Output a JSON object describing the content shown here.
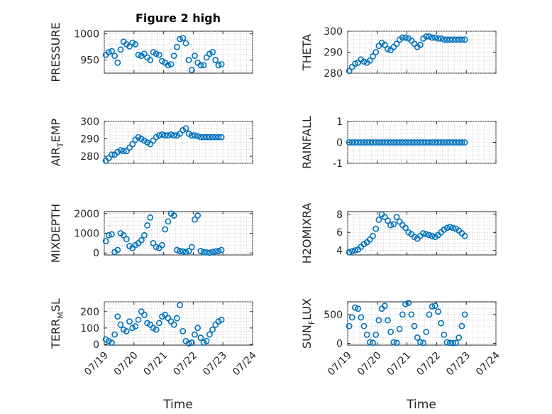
{
  "figure_title": "Figure 2 high",
  "x_tick_labels": [
    "07/19",
    "07/20",
    "07/21",
    "07/22",
    "07/23",
    "07/24"
  ],
  "x_label": "Time",
  "marker_color": "#0072bd",
  "chart_data": [
    {
      "type": "scatter",
      "ylabel": "PRESSURE",
      "ylim": [
        925,
        1005
      ],
      "yticks": [
        950,
        1000
      ],
      "grid": true,
      "xlim": [
        0,
        5
      ],
      "x": [
        0.05,
        0.15,
        0.25,
        0.35,
        0.45,
        0.55,
        0.65,
        0.75,
        0.85,
        0.95,
        1.05,
        1.15,
        1.25,
        1.35,
        1.45,
        1.55,
        1.65,
        1.75,
        1.85,
        1.95,
        2.05,
        2.15,
        2.25,
        2.35,
        2.45,
        2.55,
        2.65,
        2.75,
        2.85,
        2.95,
        3.05,
        3.15,
        3.25,
        3.35,
        3.45,
        3.55,
        3.65,
        3.75,
        3.85,
        3.95
      ],
      "values": [
        960,
        965,
        967,
        958,
        945,
        970,
        985,
        980,
        976,
        983,
        980,
        960,
        958,
        962,
        955,
        950,
        965,
        962,
        960,
        948,
        945,
        940,
        942,
        958,
        975,
        990,
        992,
        982,
        950,
        931,
        958,
        945,
        940,
        940,
        955,
        962,
        965,
        950,
        940,
        942
      ]
    },
    {
      "type": "scatter",
      "ylabel": "THETA",
      "ylim": [
        280,
        300
      ],
      "yticks": [
        280,
        290,
        300
      ],
      "grid": true,
      "xlim": [
        0,
        5
      ],
      "x": [
        0.05,
        0.15,
        0.25,
        0.35,
        0.45,
        0.55,
        0.65,
        0.75,
        0.85,
        0.95,
        1.05,
        1.15,
        1.25,
        1.35,
        1.45,
        1.55,
        1.65,
        1.75,
        1.85,
        1.95,
        2.05,
        2.15,
        2.25,
        2.35,
        2.45,
        2.55,
        2.65,
        2.75,
        2.85,
        2.95,
        3.05,
        3.15,
        3.25,
        3.35,
        3.45,
        3.55,
        3.65,
        3.75,
        3.85,
        3.95
      ],
      "values": [
        281,
        283,
        284.5,
        285,
        286.5,
        285.5,
        285,
        286,
        288,
        290,
        293,
        294.5,
        293.5,
        291.5,
        291,
        292.5,
        294,
        296,
        297,
        297,
        296.5,
        295.5,
        294,
        292.5,
        293.5,
        296.5,
        297.5,
        297.5,
        297,
        297,
        296.5,
        296.5,
        296,
        296,
        296,
        296,
        296,
        296,
        296,
        296
      ]
    },
    {
      "type": "scatter",
      "ylabel": "AIR_TEMP",
      "ylabel_main": "AIR",
      "ylabel_sub": "T",
      "ylabel_rest": "EMP",
      "ylim": [
        276,
        300
      ],
      "yticks": [
        280,
        290,
        300
      ],
      "grid": true,
      "xlim": [
        0,
        5
      ],
      "x": [
        0.05,
        0.15,
        0.25,
        0.35,
        0.45,
        0.55,
        0.65,
        0.75,
        0.85,
        0.95,
        1.05,
        1.15,
        1.25,
        1.35,
        1.45,
        1.55,
        1.65,
        1.75,
        1.85,
        1.95,
        2.05,
        2.15,
        2.25,
        2.35,
        2.45,
        2.55,
        2.65,
        2.75,
        2.85,
        2.95,
        3.05,
        3.15,
        3.25,
        3.35,
        3.45,
        3.55,
        3.65,
        3.75,
        3.85,
        3.95
      ],
      "values": [
        277.5,
        279,
        281,
        281,
        282.5,
        283.5,
        283,
        283,
        285,
        287,
        289.5,
        291,
        290,
        289,
        288,
        287,
        289,
        291,
        292,
        292.5,
        292,
        292,
        292.5,
        292,
        292,
        293,
        295,
        296,
        293,
        292,
        292,
        291.5,
        291,
        291,
        291,
        291,
        291,
        291,
        291,
        291
      ]
    },
    {
      "type": "scatter",
      "ylabel": "RAINFALL",
      "ylim": [
        -1,
        1
      ],
      "yticks": [
        -1,
        0,
        1
      ],
      "grid": true,
      "xlim": [
        0,
        5
      ],
      "x": [
        0.05,
        0.15,
        0.25,
        0.35,
        0.45,
        0.55,
        0.65,
        0.75,
        0.85,
        0.95,
        1.05,
        1.15,
        1.25,
        1.35,
        1.45,
        1.55,
        1.65,
        1.75,
        1.85,
        1.95,
        2.05,
        2.15,
        2.25,
        2.35,
        2.45,
        2.55,
        2.65,
        2.75,
        2.85,
        2.95,
        3.05,
        3.15,
        3.25,
        3.35,
        3.45,
        3.55,
        3.65,
        3.75,
        3.85,
        3.95
      ],
      "values": [
        0,
        0,
        0,
        0,
        0,
        0,
        0,
        0,
        0,
        0,
        0,
        0,
        0,
        0,
        0,
        0,
        0,
        0,
        0,
        0,
        0,
        0,
        0,
        0,
        0,
        0,
        0,
        0,
        0,
        0,
        0,
        0,
        0,
        0,
        0,
        0,
        0,
        0,
        0,
        0
      ]
    },
    {
      "type": "scatter",
      "ylabel": "MIXDEPTH",
      "ylim": [
        -100,
        2100
      ],
      "yticks": [
        0,
        1000,
        2000
      ],
      "grid": true,
      "xlim": [
        0,
        5
      ],
      "x": [
        0.05,
        0.15,
        0.25,
        0.35,
        0.45,
        0.55,
        0.65,
        0.75,
        0.85,
        0.95,
        1.05,
        1.15,
        1.25,
        1.35,
        1.45,
        1.55,
        1.65,
        1.75,
        1.85,
        1.95,
        2.05,
        2.15,
        2.25,
        2.35,
        2.45,
        2.55,
        2.65,
        2.75,
        2.85,
        2.95,
        3.05,
        3.15,
        3.25,
        3.35,
        3.45,
        3.55,
        3.65,
        3.75,
        3.85,
        3.95
      ],
      "values": [
        600,
        900,
        950,
        50,
        150,
        1000,
        900,
        700,
        350,
        250,
        400,
        500,
        650,
        900,
        1400,
        1800,
        500,
        300,
        250,
        400,
        1200,
        1600,
        2000,
        1900,
        150,
        100,
        80,
        50,
        100,
        300,
        1700,
        1900,
        100,
        50,
        30,
        10,
        50,
        80,
        100,
        150
      ]
    },
    {
      "type": "scatter",
      "ylabel": "H2OMIXRA",
      "ylim": [
        3.5,
        8.3
      ],
      "yticks": [
        4,
        6,
        8
      ],
      "grid": true,
      "xlim": [
        0,
        5
      ],
      "x": [
        0.05,
        0.15,
        0.25,
        0.35,
        0.45,
        0.55,
        0.65,
        0.75,
        0.85,
        0.95,
        1.05,
        1.15,
        1.25,
        1.35,
        1.45,
        1.55,
        1.65,
        1.75,
        1.85,
        1.95,
        2.05,
        2.15,
        2.25,
        2.35,
        2.45,
        2.55,
        2.65,
        2.75,
        2.85,
        2.95,
        3.05,
        3.15,
        3.25,
        3.35,
        3.45,
        3.55,
        3.65,
        3.75,
        3.85,
        3.95
      ],
      "values": [
        3.8,
        3.9,
        4.0,
        4.1,
        4.4,
        4.7,
        4.9,
        5.2,
        5.6,
        6.4,
        7.4,
        8.0,
        7.7,
        7.3,
        6.8,
        6.9,
        7.7,
        7.2,
        6.8,
        6.5,
        6.0,
        5.8,
        5.5,
        5.3,
        5.6,
        5.9,
        5.8,
        5.7,
        5.6,
        5.5,
        5.7,
        6.0,
        6.3,
        6.5,
        6.6,
        6.5,
        6.4,
        6.2,
        5.9,
        5.6
      ]
    },
    {
      "type": "scatter",
      "ylabel": "TERR_MSL",
      "ylabel_main": "TERR",
      "ylabel_sub": "M",
      "ylabel_rest": "SL",
      "ylim": [
        -5,
        260
      ],
      "yticks": [
        0,
        100,
        200
      ],
      "grid": true,
      "xlim": [
        0,
        5
      ],
      "x": [
        0.05,
        0.15,
        0.25,
        0.35,
        0.45,
        0.55,
        0.65,
        0.75,
        0.85,
        0.95,
        1.05,
        1.15,
        1.25,
        1.35,
        1.45,
        1.55,
        1.65,
        1.75,
        1.85,
        1.95,
        2.05,
        2.15,
        2.25,
        2.35,
        2.45,
        2.55,
        2.65,
        2.75,
        2.85,
        2.95,
        3.05,
        3.15,
        3.25,
        3.35,
        3.45,
        3.55,
        3.65,
        3.75,
        3.85,
        3.95
      ],
      "values": [
        30,
        20,
        10,
        60,
        170,
        120,
        90,
        80,
        140,
        100,
        110,
        150,
        200,
        180,
        130,
        120,
        100,
        90,
        130,
        170,
        180,
        160,
        140,
        120,
        160,
        240,
        80,
        20,
        5,
        10,
        60,
        100,
        40,
        10,
        20,
        60,
        90,
        120,
        140,
        150
      ]
    },
    {
      "type": "scatter",
      "ylabel": "SUN_FLUX",
      "ylabel_main": "SUN",
      "ylabel_sub": "F",
      "ylabel_rest": "LUX",
      "ylim": [
        -30,
        720
      ],
      "yticks": [
        0,
        500
      ],
      "grid": true,
      "xlim": [
        0,
        5
      ],
      "x": [
        0.05,
        0.15,
        0.25,
        0.35,
        0.45,
        0.55,
        0.65,
        0.75,
        0.85,
        0.95,
        1.05,
        1.15,
        1.25,
        1.35,
        1.45,
        1.55,
        1.65,
        1.75,
        1.85,
        1.95,
        2.05,
        2.15,
        2.25,
        2.35,
        2.45,
        2.55,
        2.65,
        2.75,
        2.85,
        2.95,
        3.05,
        3.15,
        3.25,
        3.35,
        3.45,
        3.55,
        3.65,
        3.75,
        3.85,
        3.95
      ],
      "values": [
        300,
        450,
        620,
        600,
        450,
        300,
        150,
        20,
        10,
        150,
        400,
        600,
        650,
        400,
        200,
        20,
        10,
        250,
        500,
        680,
        700,
        500,
        300,
        100,
        20,
        10,
        200,
        500,
        640,
        650,
        550,
        350,
        150,
        20,
        10,
        5,
        10,
        100,
        300,
        500
      ]
    }
  ]
}
